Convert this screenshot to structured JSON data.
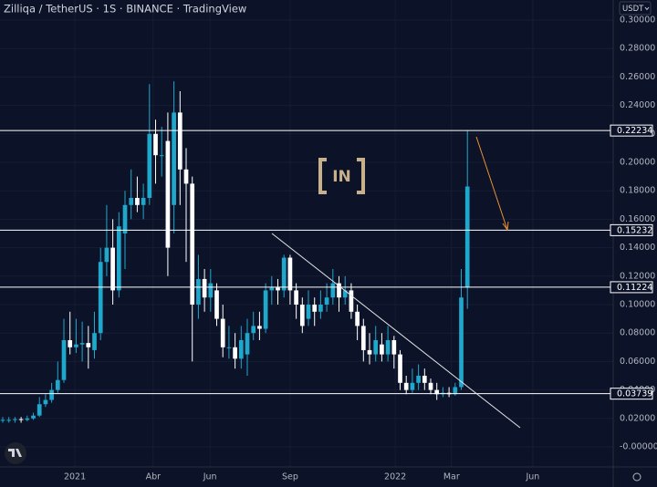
{
  "chart_data": {
    "type": "candlestick",
    "title": "Zilliqa / TetherUS · 1S · BINANCE · TradingView",
    "currency": "USDT",
    "watermark": "IN",
    "up_color": "#1fa7cc",
    "down_color": "#ffffff",
    "open": [
      0.019,
      0.019,
      0.019,
      0.0195,
      0.019,
      0.02,
      0.022,
      0.03,
      0.033,
      0.04,
      0.047,
      0.075,
      0.07,
      0.072,
      0.073,
      0.068,
      0.08,
      0.13,
      0.14,
      0.11,
      0.15,
      0.17,
      0.175,
      0.17,
      0.175,
      0.22,
      0.205,
      0.215,
      0.17,
      0.235,
      0.195,
      0.185,
      0.1,
      0.118,
      0.105,
      0.11,
      0.09,
      0.07,
      0.07,
      0.062,
      0.065,
      0.08,
      0.085,
      0.083,
      0.11,
      0.112,
      0.11,
      0.133,
      0.11,
      0.1,
      0.09,
      0.1,
      0.095,
      0.1,
      0.105,
      0.115,
      0.105,
      0.11,
      0.095,
      0.085,
      0.068,
      0.065,
      0.072,
      0.065,
      0.075,
      0.065,
      0.045,
      0.04,
      0.045,
      0.05,
      0.045,
      0.04,
      0.037,
      0.038,
      0.037,
      0.042,
      0.112
    ],
    "high": [
      0.021,
      0.021,
      0.021,
      0.021,
      0.022,
      0.024,
      0.035,
      0.037,
      0.045,
      0.06,
      0.09,
      0.095,
      0.09,
      0.088,
      0.085,
      0.095,
      0.14,
      0.17,
      0.16,
      0.165,
      0.18,
      0.195,
      0.19,
      0.185,
      0.255,
      0.23,
      0.225,
      0.235,
      0.257,
      0.25,
      0.21,
      0.19,
      0.135,
      0.125,
      0.125,
      0.115,
      0.1,
      0.085,
      0.08,
      0.085,
      0.09,
      0.095,
      0.095,
      0.115,
      0.12,
      0.118,
      0.135,
      0.135,
      0.115,
      0.105,
      0.11,
      0.105,
      0.11,
      0.115,
      0.125,
      0.12,
      0.12,
      0.115,
      0.1,
      0.09,
      0.08,
      0.085,
      0.08,
      0.085,
      0.078,
      0.068,
      0.05,
      0.055,
      0.058,
      0.055,
      0.048,
      0.045,
      0.042,
      0.042,
      0.045,
      0.125,
      0.22234
    ],
    "low": [
      0.017,
      0.017,
      0.017,
      0.017,
      0.018,
      0.019,
      0.021,
      0.028,
      0.031,
      0.038,
      0.045,
      0.065,
      0.066,
      0.06,
      0.055,
      0.062,
      0.075,
      0.12,
      0.1,
      0.105,
      0.125,
      0.16,
      0.165,
      0.16,
      0.17,
      0.185,
      0.19,
      0.12,
      0.15,
      0.17,
      0.13,
      0.06,
      0.09,
      0.095,
      0.095,
      0.085,
      0.063,
      0.062,
      0.055,
      0.055,
      0.05,
      0.075,
      0.075,
      0.08,
      0.1,
      0.1,
      0.105,
      0.1,
      0.09,
      0.08,
      0.085,
      0.085,
      0.09,
      0.095,
      0.1,
      0.095,
      0.1,
      0.09,
      0.075,
      0.06,
      0.058,
      0.06,
      0.06,
      0.06,
      0.055,
      0.04,
      0.037,
      0.038,
      0.04,
      0.04,
      0.037,
      0.033,
      0.035,
      0.035,
      0.036,
      0.04,
      0.097
    ],
    "close": [
      0.019,
      0.019,
      0.0195,
      0.019,
      0.02,
      0.022,
      0.03,
      0.033,
      0.04,
      0.047,
      0.075,
      0.07,
      0.072,
      0.073,
      0.07,
      0.08,
      0.13,
      0.14,
      0.11,
      0.155,
      0.17,
      0.175,
      0.17,
      0.175,
      0.22,
      0.205,
      0.205,
      0.14,
      0.235,
      0.195,
      0.185,
      0.1,
      0.118,
      0.105,
      0.115,
      0.09,
      0.07,
      0.07,
      0.062,
      0.075,
      0.08,
      0.085,
      0.083,
      0.11,
      0.112,
      0.11,
      0.133,
      0.11,
      0.1,
      0.085,
      0.1,
      0.095,
      0.1,
      0.105,
      0.115,
      0.105,
      0.11,
      0.095,
      0.085,
      0.068,
      0.065,
      0.075,
      0.065,
      0.075,
      0.065,
      0.045,
      0.04,
      0.045,
      0.05,
      0.045,
      0.04,
      0.037,
      0.038,
      0.037,
      0.042,
      0.105,
      0.183
    ],
    "levels": [
      0.22234,
      0.15232,
      0.11224,
      0.03739
    ],
    "xlim": [
      -0.45,
      99.85
    ],
    "xticks": [
      {
        "value": 11.8,
        "label": "2021"
      },
      {
        "value": 24.6,
        "label": "Abr"
      },
      {
        "value": 33.9,
        "label": "Jun"
      },
      {
        "value": 47.0,
        "label": "Sep"
      },
      {
        "value": 64.2,
        "label": "2022"
      },
      {
        "value": 73.4,
        "label": "Mar"
      },
      {
        "value": 86.7,
        "label": "Jun"
      }
    ],
    "ylim": [
      -0.0141,
      0.3141
    ],
    "yticks": [
      {
        "value": 0.3,
        "label": "0.30000"
      },
      {
        "value": 0.28,
        "label": "0.28000"
      },
      {
        "value": 0.26,
        "label": "0.26000"
      },
      {
        "value": 0.24,
        "label": "0.24000"
      },
      {
        "value": 0.22,
        "label": "0.22000"
      },
      {
        "value": 0.2,
        "label": "0.20000"
      },
      {
        "value": 0.18,
        "label": "0.18000"
      },
      {
        "value": 0.16,
        "label": "0.16000"
      },
      {
        "value": 0.14,
        "label": "0.14000"
      },
      {
        "value": 0.12,
        "label": "0.12000"
      },
      {
        "value": 0.1,
        "label": "0.10000"
      },
      {
        "value": 0.08,
        "label": "0.08000"
      },
      {
        "value": 0.06,
        "label": "0.06000"
      },
      {
        "value": 0.04,
        "label": "0.04000"
      },
      {
        "value": 0.02,
        "label": "0.02000"
      },
      {
        "value": 0,
        "label": "-0.00000"
      }
    ],
    "grid": true
  }
}
